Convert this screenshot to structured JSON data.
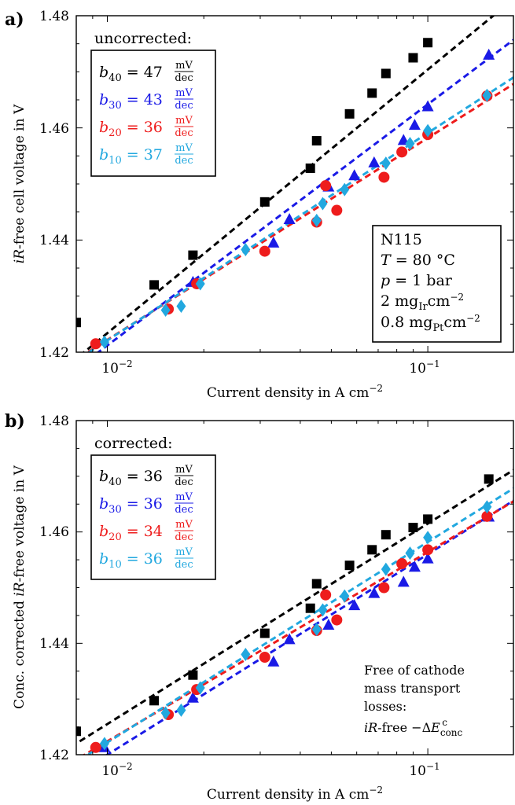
{
  "chart_data": [
    {
      "type": "scatter",
      "panel_label": "a)",
      "xlabel": "Current density in A cm⁻²",
      "ylabel": "iR-free cell voltage in V",
      "x_scale": "log",
      "xlim": [
        0.008,
        0.185
      ],
      "ylim": [
        1.42,
        1.48
      ],
      "x_tick_labels": [
        "10⁻²",
        "10⁻¹"
      ],
      "y_tick_labels": [
        "1.42",
        "1.44",
        "1.46",
        "1.48"
      ],
      "legend_title": "uncorrected:",
      "legend_placement": "top-left",
      "colors": {
        "b40": "#000000",
        "b30": "#1a1ae6",
        "b20": "#ee1c1c",
        "b10": "#22a8df"
      },
      "series": [
        {
          "name": "b40 = 47 mV/dec",
          "marker": "square",
          "color": "#000000",
          "fit": {
            "slope_mV_per_dec": 47,
            "y_at_0_01": 1.4234
          },
          "points": [
            [
              0.008,
              1.4253
            ],
            [
              0.014,
              1.432
            ],
            [
              0.0185,
              1.4373
            ],
            [
              0.031,
              1.4468
            ],
            [
              0.043,
              1.4528
            ],
            [
              0.045,
              1.4577
            ],
            [
              0.057,
              1.4625
            ],
            [
              0.067,
              1.4662
            ],
            [
              0.074,
              1.4697
            ],
            [
              0.09,
              1.4725
            ],
            [
              0.1,
              1.4752
            ]
          ]
        },
        {
          "name": "b30 = 43 mV/dec",
          "marker": "triangle",
          "color": "#1a1ae6",
          "fit": {
            "slope_mV_per_dec": 43,
            "y_at_0_01": 1.4212
          },
          "points": [
            [
              0.0185,
              1.4325
            ],
            [
              0.033,
              1.4395
            ],
            [
              0.037,
              1.4437
            ],
            [
              0.049,
              1.4495
            ],
            [
              0.059,
              1.4515
            ],
            [
              0.068,
              1.4538
            ],
            [
              0.084,
              1.4578
            ],
            [
              0.091,
              1.4605
            ],
            [
              0.1,
              1.4638
            ],
            [
              0.155,
              1.473
            ]
          ]
        },
        {
          "name": "b20 = 36 mV/dec",
          "marker": "circle",
          "color": "#ee1c1c",
          "fit": {
            "slope_mV_per_dec": 36,
            "y_at_0_01": 1.4222
          },
          "points": [
            [
              0.0092,
              1.4215
            ],
            [
              0.0155,
              1.4277
            ],
            [
              0.019,
              1.4322
            ],
            [
              0.031,
              1.438
            ],
            [
              0.045,
              1.4432
            ],
            [
              0.048,
              1.4497
            ],
            [
              0.052,
              1.4453
            ],
            [
              0.073,
              1.4512
            ],
            [
              0.083,
              1.4557
            ],
            [
              0.1,
              1.4588
            ],
            [
              0.153,
              1.4657
            ]
          ]
        },
        {
          "name": "b10 = 37 mV/dec",
          "marker": "diamond",
          "color": "#22a8df",
          "fit": {
            "slope_mV_per_dec": 37,
            "y_at_0_01": 1.4221
          },
          "points": [
            [
              0.0098,
              1.4218
            ],
            [
              0.0152,
              1.4275
            ],
            [
              0.017,
              1.4282
            ],
            [
              0.0195,
              1.4322
            ],
            [
              0.027,
              1.4383
            ],
            [
              0.045,
              1.4435
            ],
            [
              0.047,
              1.4465
            ],
            [
              0.055,
              1.449
            ],
            [
              0.074,
              1.4537
            ],
            [
              0.088,
              1.4572
            ],
            [
              0.1,
              1.4595
            ],
            [
              0.153,
              1.4658
            ]
          ]
        }
      ],
      "info_box": [
        "N115",
        "T = 80 °C",
        "p = 1 bar",
        "2 mgIr cm⁻²",
        "0.8 mgPt cm⁻²"
      ]
    },
    {
      "type": "scatter",
      "panel_label": "b)",
      "xlabel": "Current density in A cm⁻²",
      "ylabel": "Conc. corrected iR-free voltage in V",
      "x_scale": "log",
      "xlim": [
        0.008,
        0.185
      ],
      "ylim": [
        1.42,
        1.48
      ],
      "x_tick_labels": [
        "10⁻²",
        "10⁻¹"
      ],
      "y_tick_labels": [
        "1.42",
        "1.44",
        "1.46",
        "1.48"
      ],
      "legend_title": "corrected:",
      "legend_placement": "top-left",
      "colors": {
        "b40": "#000000",
        "b30": "#1a1ae6",
        "b20": "#ee1c1c",
        "b10": "#22a8df"
      },
      "series": [
        {
          "name": "b40 = 36 mV/dec",
          "marker": "square",
          "color": "#000000",
          "fit": {
            "slope_mV_per_dec": 36,
            "y_at_0_01": 1.4255
          },
          "points": [
            [
              0.008,
              1.4242
            ],
            [
              0.014,
              1.4297
            ],
            [
              0.0185,
              1.4343
            ],
            [
              0.031,
              1.4418
            ],
            [
              0.043,
              1.4463
            ],
            [
              0.045,
              1.4507
            ],
            [
              0.057,
              1.454
            ],
            [
              0.067,
              1.4568
            ],
            [
              0.074,
              1.4595
            ],
            [
              0.09,
              1.4608
            ],
            [
              0.1,
              1.4623
            ],
            [
              0.155,
              1.4695
            ]
          ]
        },
        {
          "name": "b30 = 36 mV/dec",
          "marker": "triangle",
          "color": "#1a1ae6",
          "fit": {
            "slope_mV_per_dec": 36,
            "y_at_0_01": 1.42
          },
          "points": [
            [
              0.0098,
              1.4213
            ],
            [
              0.0185,
              1.4302
            ],
            [
              0.033,
              1.4367
            ],
            [
              0.037,
              1.4407
            ],
            [
              0.049,
              1.4433
            ],
            [
              0.059,
              1.4468
            ],
            [
              0.068,
              1.449
            ],
            [
              0.084,
              1.451
            ],
            [
              0.091,
              1.4537
            ],
            [
              0.1,
              1.4552
            ],
            [
              0.155,
              1.4627
            ]
          ]
        },
        {
          "name": "b20 = 34 mV/dec",
          "marker": "circle",
          "color": "#ee1c1c",
          "fit": {
            "slope_mV_per_dec": 34,
            "y_at_0_01": 1.4224
          },
          "points": [
            [
              0.0092,
              1.4213
            ],
            [
              0.0155,
              1.4272
            ],
            [
              0.019,
              1.4317
            ],
            [
              0.031,
              1.4375
            ],
            [
              0.045,
              1.4423
            ],
            [
              0.048,
              1.4487
            ],
            [
              0.052,
              1.4442
            ],
            [
              0.073,
              1.45
            ],
            [
              0.083,
              1.4543
            ],
            [
              0.1,
              1.4568
            ],
            [
              0.153,
              1.4628
            ]
          ]
        },
        {
          "name": "b10 = 36 mV/dec",
          "marker": "diamond",
          "color": "#22a8df",
          "fit": {
            "slope_mV_per_dec": 36,
            "y_at_0_01": 1.4222
          },
          "points": [
            [
              0.0098,
              1.422
            ],
            [
              0.0152,
              1.4275
            ],
            [
              0.017,
              1.428
            ],
            [
              0.0195,
              1.432
            ],
            [
              0.027,
              1.438
            ],
            [
              0.045,
              1.4425
            ],
            [
              0.047,
              1.446
            ],
            [
              0.055,
              1.4485
            ],
            [
              0.074,
              1.4533
            ],
            [
              0.088,
              1.4562
            ],
            [
              0.1,
              1.459
            ],
            [
              0.153,
              1.4645
            ]
          ]
        }
      ],
      "annotation_lines": [
        "Free of cathode",
        "mass transport",
        "losses:",
        "iR-free −ΔE_conc^c"
      ]
    }
  ]
}
